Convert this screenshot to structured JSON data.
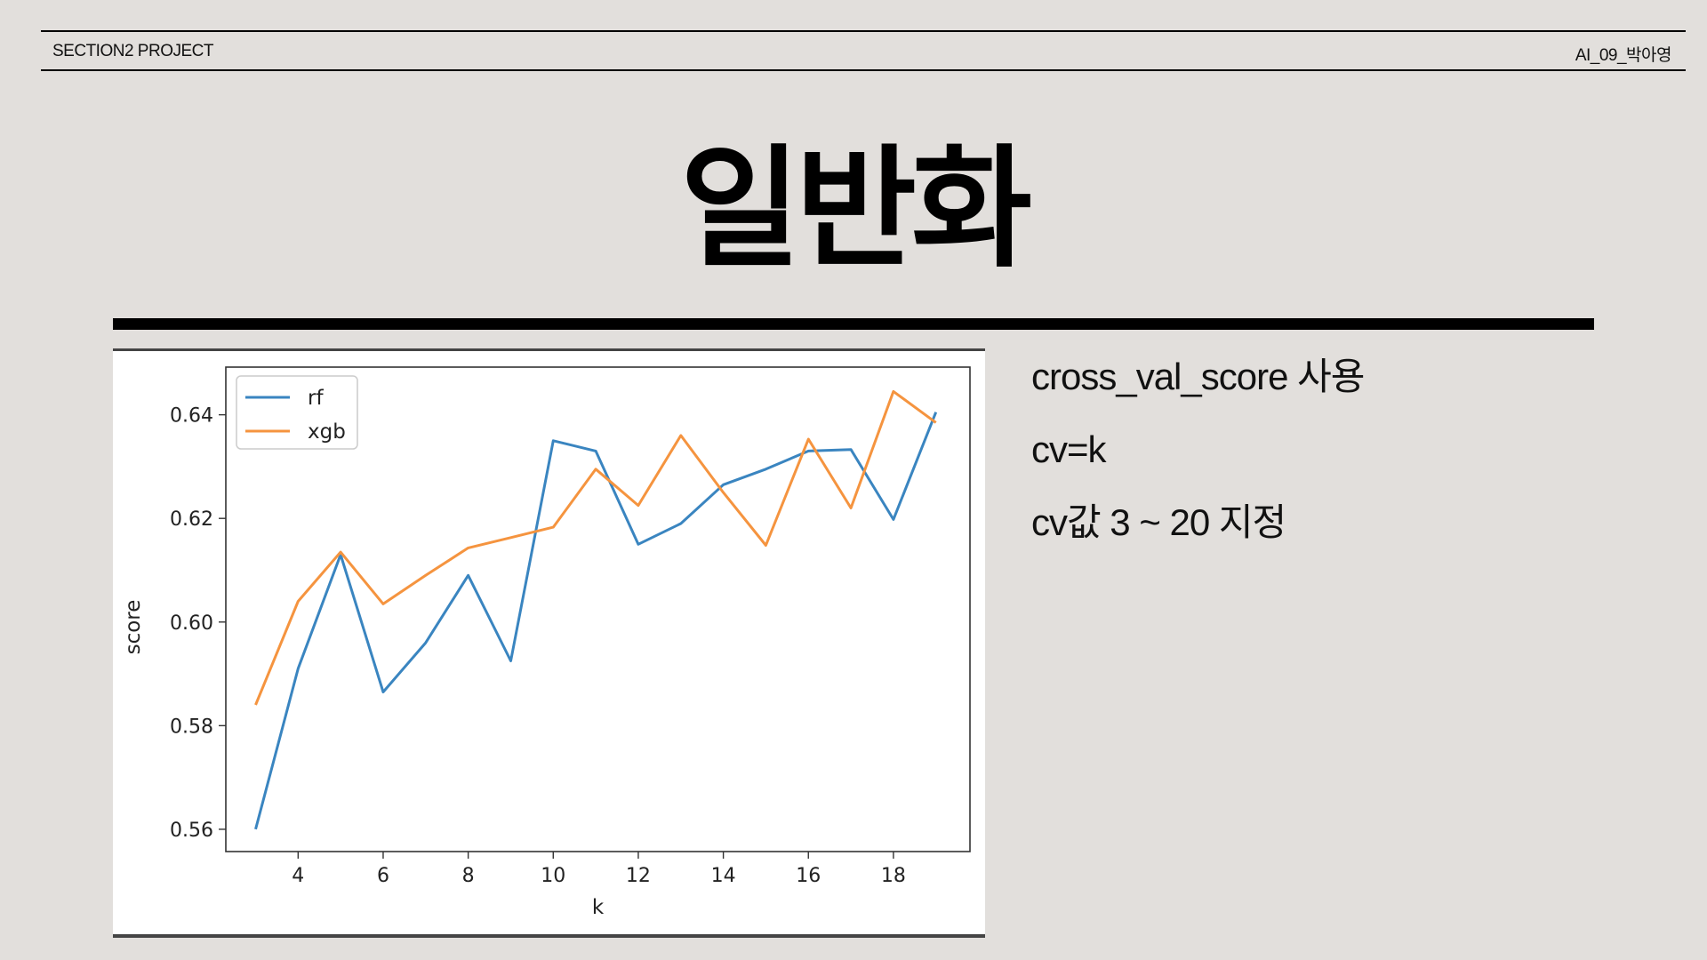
{
  "header": {
    "left": "SECTION2 PROJECT",
    "right": "AI_09_박아영"
  },
  "title": "일반화",
  "notes": [
    "cross_val_score 사용",
    "cv=k",
    "cv값 3 ~ 20 지정"
  ],
  "colors": {
    "rf": "#3a85c0",
    "xgb": "#f5943f",
    "background": "#e2dfdc"
  },
  "chart_data": {
    "type": "line",
    "xlabel": "k",
    "ylabel": "score",
    "x": [
      3,
      4,
      5,
      6,
      7,
      8,
      9,
      10,
      11,
      12,
      13,
      14,
      15,
      16,
      17,
      18,
      19
    ],
    "xticks": [
      4,
      6,
      8,
      10,
      12,
      14,
      16,
      18
    ],
    "yticks": [
      0.56,
      0.58,
      0.6,
      0.62,
      0.64
    ],
    "ytick_labels": [
      "0.56",
      "0.58",
      "0.60",
      "0.62",
      "0.64"
    ],
    "xlim": [
      2.3,
      19.8
    ],
    "ylim": [
      0.5557,
      0.6492
    ],
    "legend": "top-left",
    "grid": false,
    "series": [
      {
        "name": "rf",
        "color": "#3a85c0",
        "values": [
          0.56,
          0.591,
          0.613,
          0.5865,
          0.596,
          0.609,
          0.5925,
          0.635,
          0.633,
          0.615,
          0.619,
          0.6265,
          0.6295,
          0.633,
          0.6333,
          0.6198,
          0.6405
        ]
      },
      {
        "name": "xgb",
        "color": "#f5943f",
        "values": [
          0.584,
          0.604,
          0.6135,
          0.6035,
          0.609,
          0.6143,
          0.6163,
          0.6183,
          0.6295,
          0.6225,
          0.636,
          0.625,
          0.6148,
          0.6353,
          0.622,
          0.6445,
          0.6385
        ]
      }
    ]
  }
}
